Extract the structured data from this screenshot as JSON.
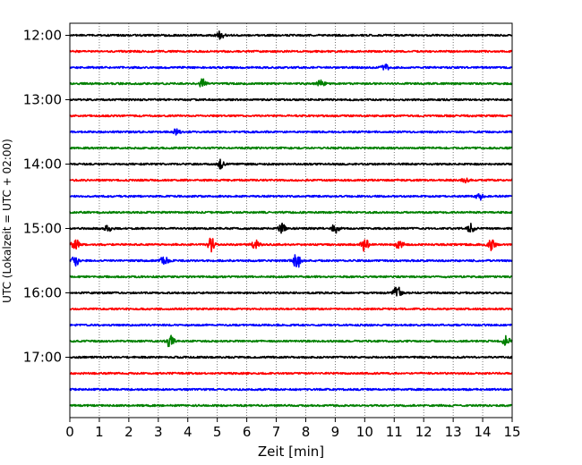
{
  "chart_data": {
    "type": "line",
    "title": "",
    "xlabel": "Zeit  [min]",
    "ylabel": "UTC (Lokalzeit = UTC + 02:00)",
    "xlim": [
      0,
      15
    ],
    "xticks": [
      "0",
      "1",
      "2",
      "3",
      "4",
      "5",
      "6",
      "7",
      "8",
      "9",
      "10",
      "11",
      "12",
      "13",
      "14",
      "15"
    ],
    "yticks": [
      "12:00",
      "13:00",
      "14:00",
      "15:00",
      "16:00",
      "17:00"
    ],
    "grid": "vertical dotted",
    "colors": [
      "#000000",
      "#ff0000",
      "#0000ff",
      "#008000"
    ],
    "row_start": "12:00",
    "row_interval_minutes": 15,
    "row_count": 24,
    "events": [
      {
        "row": 0,
        "x": 5.1,
        "amp": 1.0
      },
      {
        "row": 2,
        "x": 10.7,
        "amp": 0.9
      },
      {
        "row": 3,
        "x": 4.5,
        "amp": 1.2
      },
      {
        "row": 3,
        "x": 8.5,
        "amp": 0.8
      },
      {
        "row": 6,
        "x": 3.6,
        "amp": 0.7
      },
      {
        "row": 8,
        "x": 5.1,
        "amp": 1.1
      },
      {
        "row": 9,
        "x": 13.4,
        "amp": 0.8
      },
      {
        "row": 10,
        "x": 13.9,
        "amp": 0.9
      },
      {
        "row": 12,
        "x": 1.3,
        "amp": 0.8
      },
      {
        "row": 12,
        "x": 7.2,
        "amp": 1.2
      },
      {
        "row": 12,
        "x": 9.0,
        "amp": 1.4
      },
      {
        "row": 12,
        "x": 13.6,
        "amp": 1.2
      },
      {
        "row": 13,
        "x": 0.2,
        "amp": 1.6
      },
      {
        "row": 13,
        "x": 4.8,
        "amp": 1.9
      },
      {
        "row": 13,
        "x": 6.3,
        "amp": 1.2
      },
      {
        "row": 13,
        "x": 10.0,
        "amp": 1.8
      },
      {
        "row": 13,
        "x": 11.2,
        "amp": 1.8
      },
      {
        "row": 13,
        "x": 14.3,
        "amp": 1.6
      },
      {
        "row": 14,
        "x": 0.2,
        "amp": 1.5
      },
      {
        "row": 14,
        "x": 3.2,
        "amp": 1.3
      },
      {
        "row": 14,
        "x": 7.7,
        "amp": 2.3
      },
      {
        "row": 16,
        "x": 11.1,
        "amp": 2.0
      },
      {
        "row": 19,
        "x": 3.4,
        "amp": 1.9
      },
      {
        "row": 19,
        "x": 14.8,
        "amp": 1.4
      }
    ]
  }
}
